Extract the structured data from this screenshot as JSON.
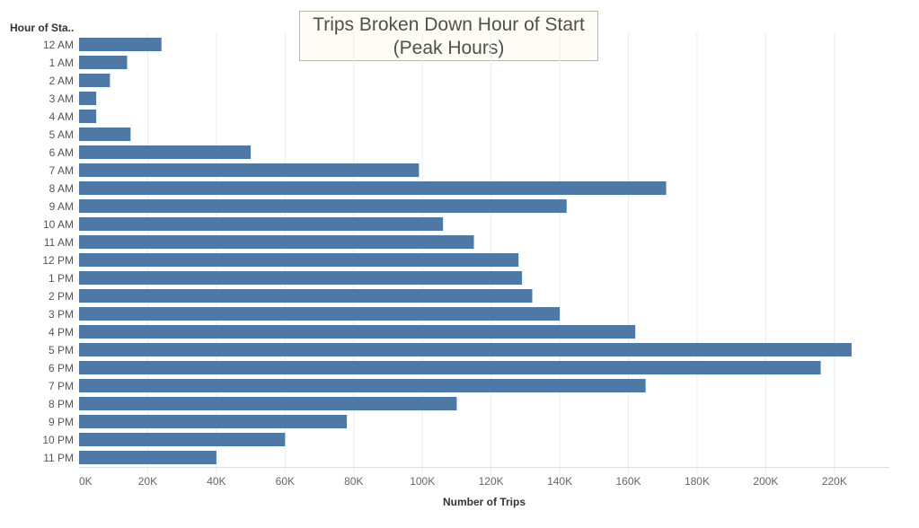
{
  "chart_data": {
    "type": "bar",
    "orientation": "horizontal",
    "title": [
      "Trips Broken Down Hour of Start",
      "(Peak Hours)"
    ],
    "row_header": "Hour of Sta..",
    "xlabel": "Number of Trips",
    "ylabel": "",
    "xlim": [
      0,
      236000
    ],
    "xticks": [
      0,
      20000,
      40000,
      60000,
      80000,
      100000,
      120000,
      140000,
      160000,
      180000,
      200000,
      220000
    ],
    "xtick_labels": [
      "0K",
      "20K",
      "40K",
      "60K",
      "80K",
      "100K",
      "120K",
      "140K",
      "160K",
      "180K",
      "200K",
      "220K"
    ],
    "grid": "vertical",
    "bar_color": "#4e79a7",
    "categories": [
      "12 AM",
      "1 AM",
      "2 AM",
      "3 AM",
      "4 AM",
      "5 AM",
      "6 AM",
      "7 AM",
      "8 AM",
      "9 AM",
      "10 AM",
      "11 AM",
      "12 PM",
      "1 PM",
      "2 PM",
      "3 PM",
      "4 PM",
      "5 PM",
      "6 PM",
      "7 PM",
      "8 PM",
      "9 PM",
      "10 PM",
      "11 PM"
    ],
    "values": [
      24000,
      14000,
      9000,
      5000,
      5000,
      15000,
      50000,
      99000,
      171000,
      142000,
      106000,
      115000,
      128000,
      129000,
      132000,
      140000,
      162000,
      225000,
      216000,
      165000,
      110000,
      78000,
      60000,
      40000
    ]
  }
}
